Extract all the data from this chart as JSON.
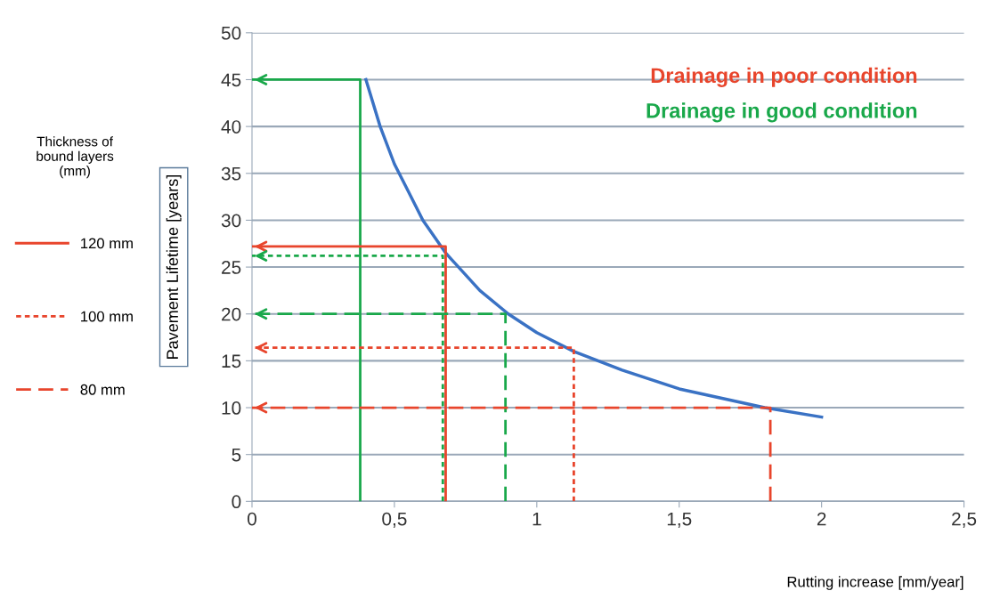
{
  "chart_data": {
    "type": "line",
    "xlabel": "Rutting increase [mm/year]",
    "ylabel": "Pavement Lifetime [years]",
    "legend_title": "Thickness of\nbound layers\n(mm)",
    "annotations": [
      "Drainage in poor condition",
      "Drainage in good condition"
    ],
    "xlim": [
      0,
      2.5
    ],
    "ylim": [
      0,
      50
    ],
    "xticks": [
      0,
      {
        "value": 0.5,
        "label": "0,5"
      },
      1,
      {
        "value": 1.5,
        "label": "1,5"
      },
      2,
      {
        "value": 2.5,
        "label": "2,5"
      }
    ],
    "yticks": [
      0,
      5,
      10,
      15,
      20,
      25,
      30,
      35,
      40,
      45,
      50
    ],
    "grid": "y",
    "legend": "left",
    "marker": "none",
    "series": [
      {
        "color": "#3a72c4",
        "line_style": "solid",
        "x": [
          0.4,
          0.45,
          0.5,
          0.55,
          0.6,
          0.68,
          0.8,
          0.9,
          1.0,
          1.13,
          1.3,
          1.5,
          1.8,
          2.0
        ],
        "values": [
          45,
          40,
          36,
          33,
          30,
          26.5,
          22.5,
          20,
          18,
          16,
          14,
          12,
          10,
          9
        ]
      },
      {
        "color": "#19a84a",
        "line_style": "solid",
        "x": [
          0.38,
          0.38,
          0
        ],
        "values": [
          0,
          45,
          45
        ]
      },
      {
        "name": "120 mm",
        "color": "#e8452c",
        "line_style": "solid",
        "x": [
          0.68,
          0.68,
          0
        ],
        "values": [
          0,
          27.2,
          27.2
        ]
      },
      {
        "color": "#19a84a",
        "line_style": "dotted",
        "x": [
          0.67,
          0.67,
          0
        ],
        "values": [
          0,
          26.2,
          26.2
        ]
      },
      {
        "color": "#19a84a",
        "line_style": "dashed",
        "x": [
          0.89,
          0.89,
          0
        ],
        "values": [
          0,
          20,
          20
        ]
      },
      {
        "name": "100 mm",
        "color": "#e8452c",
        "line_style": "dotted",
        "x": [
          1.13,
          1.13,
          0
        ],
        "values": [
          0,
          16.4,
          16.4
        ]
      },
      {
        "name": "80 mm",
        "color": "#e8452c",
        "line_style": "dashed",
        "x": [
          1.82,
          1.82,
          0
        ],
        "values": [
          0,
          10,
          10
        ]
      }
    ]
  }
}
